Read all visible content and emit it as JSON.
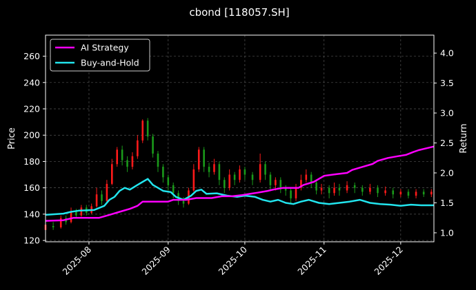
{
  "chart_data": {
    "type": "candlestick+line",
    "title": "cbond [118057.SH]",
    "ylabel_left": "Price",
    "ylabel_right": "Return",
    "ylim_left": [
      119,
      276
    ],
    "ylim_right": [
      0.85,
      4.3
    ],
    "x_range": [
      "2025-07-15",
      "2025-12-14"
    ],
    "x_ticks": [
      "2025-08",
      "2025-09",
      "2025-10",
      "2025-11",
      "2025-12"
    ],
    "y_ticks_left": [
      120,
      140,
      160,
      180,
      200,
      220,
      240,
      260
    ],
    "y_ticks_right": [
      "1.0",
      "1.5",
      "2.0",
      "2.5",
      "3.0",
      "3.5",
      "4.0"
    ],
    "grid": true,
    "legend_position": "top-left",
    "colors": {
      "ai": "#ff00ff",
      "bh": "#22e5ee",
      "up": "#ff1a1a",
      "down": "#1a9a1a",
      "background": "#000000"
    },
    "series": [
      {
        "name": "AI Strategy",
        "type": "line",
        "points": [
          [
            "2025-07-15",
            1.2
          ],
          [
            "2025-07-22",
            1.21
          ],
          [
            "2025-07-26",
            1.25
          ],
          [
            "2025-08-05",
            1.25
          ],
          [
            "2025-08-09",
            1.3
          ],
          [
            "2025-08-13",
            1.35
          ],
          [
            "2025-08-17",
            1.4
          ],
          [
            "2025-08-20",
            1.45
          ],
          [
            "2025-08-22",
            1.52
          ],
          [
            "2025-09-01",
            1.52
          ],
          [
            "2025-09-03",
            1.55
          ],
          [
            "2025-09-08",
            1.55
          ],
          [
            "2025-09-12",
            1.58
          ],
          [
            "2025-09-18",
            1.58
          ],
          [
            "2025-09-22",
            1.61
          ],
          [
            "2025-09-26",
            1.61
          ],
          [
            "2025-09-30",
            1.63
          ],
          [
            "2025-10-03",
            1.65
          ],
          [
            "2025-10-06",
            1.67
          ],
          [
            "2025-10-10",
            1.7
          ],
          [
            "2025-10-12",
            1.72
          ],
          [
            "2025-10-16",
            1.75
          ],
          [
            "2025-10-22",
            1.75
          ],
          [
            "2025-10-24",
            1.8
          ],
          [
            "2025-10-28",
            1.85
          ],
          [
            "2025-11-01",
            1.95
          ],
          [
            "2025-11-06",
            1.98
          ],
          [
            "2025-11-10",
            2.0
          ],
          [
            "2025-11-12",
            2.05
          ],
          [
            "2025-11-16",
            2.1
          ],
          [
            "2025-11-20",
            2.15
          ],
          [
            "2025-11-22",
            2.2
          ],
          [
            "2025-11-26",
            2.25
          ],
          [
            "2025-11-30",
            2.28
          ],
          [
            "2025-12-03",
            2.3
          ],
          [
            "2025-12-06",
            2.35
          ],
          [
            "2025-12-08",
            2.38
          ],
          [
            "2025-12-10",
            2.4
          ],
          [
            "2025-12-14",
            2.44
          ]
        ]
      },
      {
        "name": "Buy-and-Hold",
        "type": "line",
        "points": [
          [
            "2025-07-15",
            1.3
          ],
          [
            "2025-07-22",
            1.32
          ],
          [
            "2025-07-25",
            1.35
          ],
          [
            "2025-07-28",
            1.37
          ],
          [
            "2025-08-03",
            1.38
          ],
          [
            "2025-08-07",
            1.45
          ],
          [
            "2025-08-09",
            1.55
          ],
          [
            "2025-08-11",
            1.6
          ],
          [
            "2025-08-13",
            1.7
          ],
          [
            "2025-08-15",
            1.75
          ],
          [
            "2025-08-17",
            1.72
          ],
          [
            "2025-08-20",
            1.8
          ],
          [
            "2025-08-22",
            1.85
          ],
          [
            "2025-08-24",
            1.9
          ],
          [
            "2025-08-26",
            1.8
          ],
          [
            "2025-08-28",
            1.75
          ],
          [
            "2025-08-30",
            1.7
          ],
          [
            "2025-09-02",
            1.68
          ],
          [
            "2025-09-04",
            1.6
          ],
          [
            "2025-09-07",
            1.55
          ],
          [
            "2025-09-10",
            1.62
          ],
          [
            "2025-09-12",
            1.7
          ],
          [
            "2025-09-14",
            1.72
          ],
          [
            "2025-09-16",
            1.65
          ],
          [
            "2025-09-20",
            1.66
          ],
          [
            "2025-09-24",
            1.62
          ],
          [
            "2025-09-28",
            1.6
          ],
          [
            "2025-10-01",
            1.62
          ],
          [
            "2025-10-05",
            1.6
          ],
          [
            "2025-10-08",
            1.55
          ],
          [
            "2025-10-11",
            1.52
          ],
          [
            "2025-10-14",
            1.55
          ],
          [
            "2025-10-17",
            1.5
          ],
          [
            "2025-10-20",
            1.48
          ],
          [
            "2025-10-23",
            1.52
          ],
          [
            "2025-10-26",
            1.55
          ],
          [
            "2025-10-30",
            1.5
          ],
          [
            "2025-11-03",
            1.48
          ],
          [
            "2025-11-07",
            1.5
          ],
          [
            "2025-11-11",
            1.52
          ],
          [
            "2025-11-15",
            1.55
          ],
          [
            "2025-11-19",
            1.5
          ],
          [
            "2025-11-23",
            1.48
          ],
          [
            "2025-11-27",
            1.47
          ],
          [
            "2025-12-01",
            1.45
          ],
          [
            "2025-12-05",
            1.47
          ],
          [
            "2025-12-09",
            1.46
          ],
          [
            "2025-12-14",
            1.46
          ]
        ]
      },
      {
        "name": "price",
        "type": "candlestick",
        "points": [
          [
            "2025-07-15",
            128,
            132,
            126,
            133
          ],
          [
            "2025-07-18",
            131,
            130,
            128,
            134
          ],
          [
            "2025-07-21",
            130,
            137,
            129,
            139
          ],
          [
            "2025-07-23",
            137,
            134,
            132,
            139
          ],
          [
            "2025-07-25",
            134,
            142,
            133,
            145
          ],
          [
            "2025-07-27",
            142,
            139,
            137,
            144
          ],
          [
            "2025-07-29",
            139,
            145,
            138,
            147
          ],
          [
            "2025-07-31",
            145,
            141,
            139,
            147
          ],
          [
            "2025-08-02",
            141,
            146,
            140,
            148
          ],
          [
            "2025-08-04",
            146,
            155,
            145,
            160
          ],
          [
            "2025-08-06",
            155,
            150,
            147,
            158
          ],
          [
            "2025-08-08",
            150,
            163,
            149,
            166
          ],
          [
            "2025-08-10",
            163,
            178,
            162,
            182
          ],
          [
            "2025-08-12",
            178,
            189,
            176,
            191
          ],
          [
            "2025-08-14",
            189,
            181,
            177,
            192
          ],
          [
            "2025-08-16",
            181,
            176,
            172,
            184
          ],
          [
            "2025-08-18",
            176,
            184,
            174,
            187
          ],
          [
            "2025-08-20",
            184,
            196,
            182,
            200
          ],
          [
            "2025-08-22",
            196,
            211,
            194,
            212
          ],
          [
            "2025-08-24",
            211,
            199,
            196,
            213
          ],
          [
            "2025-08-26",
            199,
            186,
            183,
            201
          ],
          [
            "2025-08-28",
            186,
            176,
            172,
            188
          ],
          [
            "2025-08-30",
            176,
            168,
            164,
            178
          ],
          [
            "2025-09-01",
            168,
            162,
            158,
            170
          ],
          [
            "2025-09-03",
            162,
            156,
            152,
            164
          ],
          [
            "2025-09-05",
            156,
            150,
            147,
            158
          ],
          [
            "2025-09-07",
            150,
            148,
            145,
            153
          ],
          [
            "2025-09-09",
            148,
            158,
            147,
            160
          ],
          [
            "2025-09-11",
            158,
            174,
            157,
            178
          ],
          [
            "2025-09-13",
            174,
            189,
            172,
            191
          ],
          [
            "2025-09-15",
            189,
            176,
            172,
            191
          ],
          [
            "2025-09-17",
            176,
            172,
            168,
            179
          ],
          [
            "2025-09-19",
            172,
            178,
            170,
            182
          ],
          [
            "2025-09-21",
            178,
            166,
            162,
            180
          ],
          [
            "2025-09-23",
            166,
            160,
            156,
            168
          ],
          [
            "2025-09-25",
            160,
            170,
            158,
            174
          ],
          [
            "2025-09-27",
            170,
            166,
            162,
            172
          ],
          [
            "2025-09-29",
            166,
            174,
            164,
            177
          ],
          [
            "2025-10-01",
            174,
            170,
            166,
            176
          ],
          [
            "2025-10-04",
            170,
            166,
            162,
            172
          ],
          [
            "2025-10-07",
            166,
            178,
            164,
            186
          ],
          [
            "2025-10-09",
            178,
            170,
            166,
            180
          ],
          [
            "2025-10-11",
            170,
            162,
            158,
            172
          ],
          [
            "2025-10-13",
            162,
            166,
            158,
            168
          ],
          [
            "2025-10-15",
            166,
            160,
            156,
            168
          ],
          [
            "2025-10-17",
            160,
            158,
            154,
            162
          ],
          [
            "2025-10-19",
            158,
            152,
            148,
            160
          ],
          [
            "2025-10-21",
            152,
            160,
            150,
            163
          ],
          [
            "2025-10-23",
            160,
            166,
            158,
            170
          ],
          [
            "2025-10-25",
            166,
            170,
            164,
            174
          ],
          [
            "2025-10-27",
            170,
            164,
            160,
            172
          ],
          [
            "2025-10-29",
            164,
            158,
            155,
            166
          ],
          [
            "2025-10-31",
            158,
            160,
            155,
            163
          ],
          [
            "2025-11-03",
            160,
            156,
            152,
            162
          ],
          [
            "2025-11-05",
            156,
            160,
            154,
            164
          ],
          [
            "2025-11-07",
            160,
            158,
            154,
            163
          ],
          [
            "2025-11-10",
            158,
            162,
            156,
            165
          ],
          [
            "2025-11-13",
            162,
            160,
            156,
            164
          ],
          [
            "2025-11-16",
            160,
            157,
            154,
            162
          ],
          [
            "2025-11-19",
            157,
            160,
            155,
            163
          ],
          [
            "2025-11-22",
            160,
            156,
            153,
            162
          ],
          [
            "2025-11-25",
            156,
            158,
            154,
            161
          ],
          [
            "2025-11-28",
            158,
            155,
            152,
            160
          ],
          [
            "2025-12-01",
            155,
            157,
            153,
            159
          ],
          [
            "2025-12-04",
            157,
            154,
            152,
            159
          ],
          [
            "2025-12-07",
            154,
            157,
            152,
            159
          ],
          [
            "2025-12-10",
            157,
            155,
            153,
            159
          ],
          [
            "2025-12-13",
            155,
            157,
            153,
            159
          ]
        ]
      }
    ]
  }
}
